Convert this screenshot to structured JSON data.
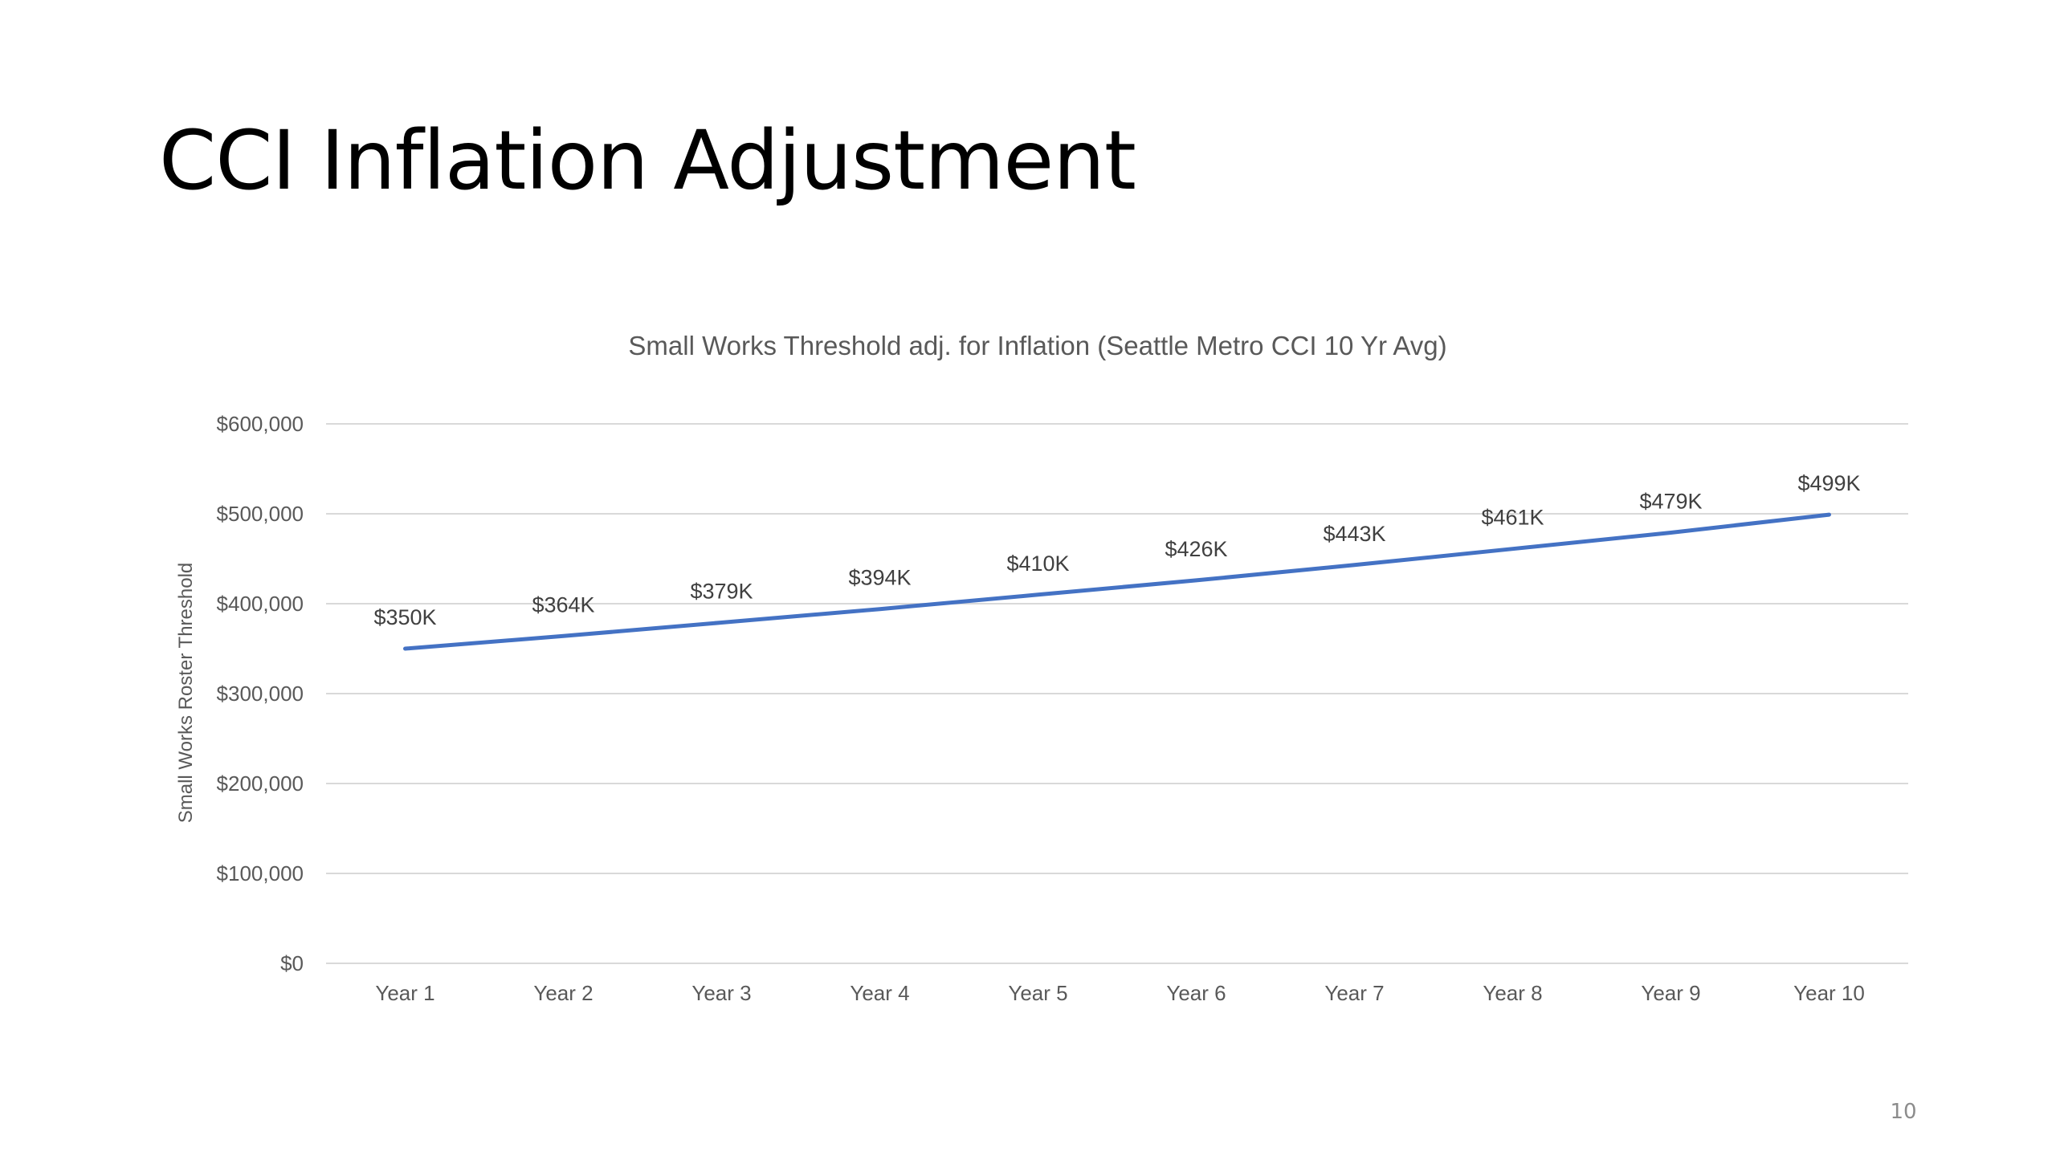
{
  "slide": {
    "title": "CCI Inflation Adjustment",
    "page_number": "10"
  },
  "chart_data": {
    "type": "line",
    "title": "Small Works Threshold adj. for Inflation (Seattle Metro CCI 10 Yr Avg)",
    "xlabel": "",
    "ylabel": "Small Works Roster Threshold",
    "categories": [
      "Year 1",
      "Year 2",
      "Year 3",
      "Year 4",
      "Year 5",
      "Year 6",
      "Year 7",
      "Year 8",
      "Year 9",
      "Year 10"
    ],
    "series": [
      {
        "values": [
          350000,
          364000,
          379000,
          394000,
          410000,
          426000,
          443000,
          461000,
          479000,
          499000
        ],
        "data_labels": [
          "$350K",
          "$364K",
          "$379K",
          "$394K",
          "$410K",
          "$426K",
          "$443K",
          "$461K",
          "$479K",
          "$499K"
        ],
        "color": "#4472c4"
      }
    ],
    "ylim": [
      0,
      600000
    ],
    "yticks": [
      {
        "value": 0,
        "label": "$0"
      },
      {
        "value": 100000,
        "label": "$100,000"
      },
      {
        "value": 200000,
        "label": "$200,000"
      },
      {
        "value": 300000,
        "label": "$300,000"
      },
      {
        "value": 400000,
        "label": "$400,000"
      },
      {
        "value": 500000,
        "label": "$500,000"
      },
      {
        "value": 600000,
        "label": "$600,000"
      }
    ],
    "grid": true,
    "legend": "none"
  }
}
